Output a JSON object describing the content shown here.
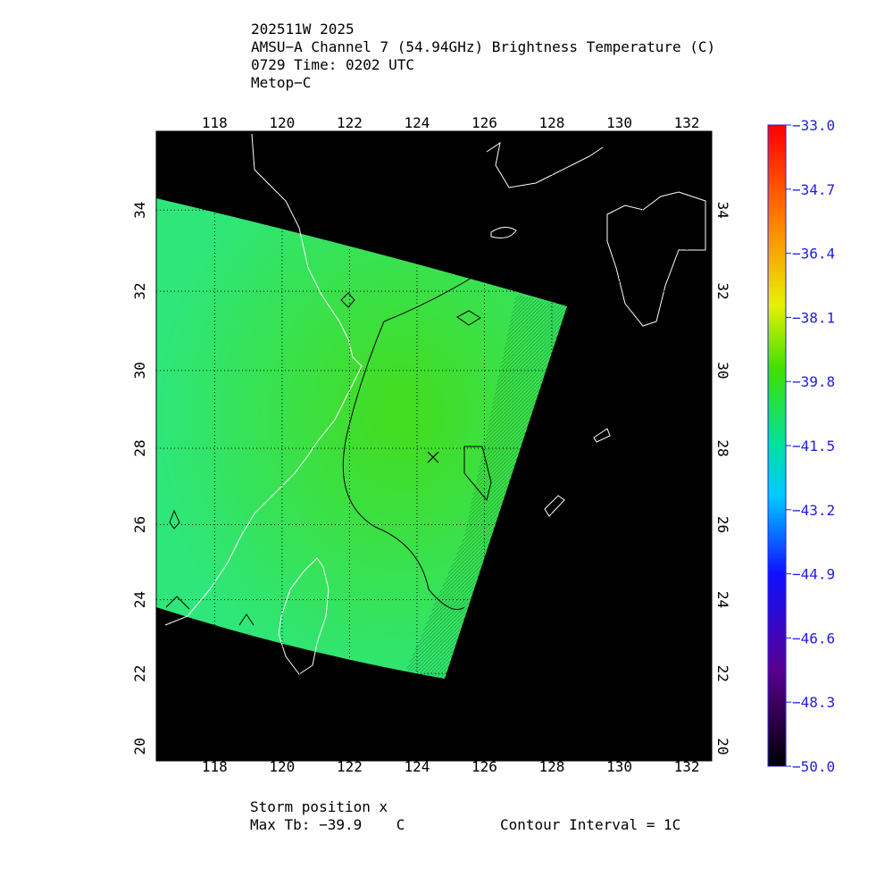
{
  "header": {
    "lines": [
      "202511W 2025",
      "AMSU−A Channel 7 (54.94GHz) Brightness Temperature (C)",
      "0729 Time: 0202 UTC",
      "Metop−C"
    ]
  },
  "map": {
    "lon_lim": [
      116.27,
      132.74
    ],
    "lat_lim": [
      19.6,
      35.9
    ],
    "lon_ticks": [
      118,
      120,
      122,
      124,
      126,
      128,
      130,
      132
    ],
    "lat_ticks": [
      20,
      22,
      24,
      26,
      28,
      30,
      32,
      34
    ]
  },
  "colorbar": {
    "lim": [
      -50,
      -33
    ],
    "ticks": [
      {
        "value": -33,
        "label": "−33.0"
      },
      {
        "value": -34.7,
        "label": "−34.7"
      },
      {
        "value": -36.4,
        "label": "−36.4"
      },
      {
        "value": -38.1,
        "label": "−38.1"
      },
      {
        "value": -39.8,
        "label": "−39.8"
      },
      {
        "value": -41.5,
        "label": "−41.5"
      },
      {
        "value": -43.2,
        "label": "−43.2"
      },
      {
        "value": -44.9,
        "label": "−44.9"
      },
      {
        "value": -46.6,
        "label": "−46.6"
      },
      {
        "value": -48.3,
        "label": "−48.3"
      },
      {
        "value": -50,
        "label": "−50.0"
      }
    ]
  },
  "footer": {
    "storm": "Storm position x",
    "max_tb": "Max Tb: −39.9    C",
    "contour": "Contour Interval = 1C"
  }
}
